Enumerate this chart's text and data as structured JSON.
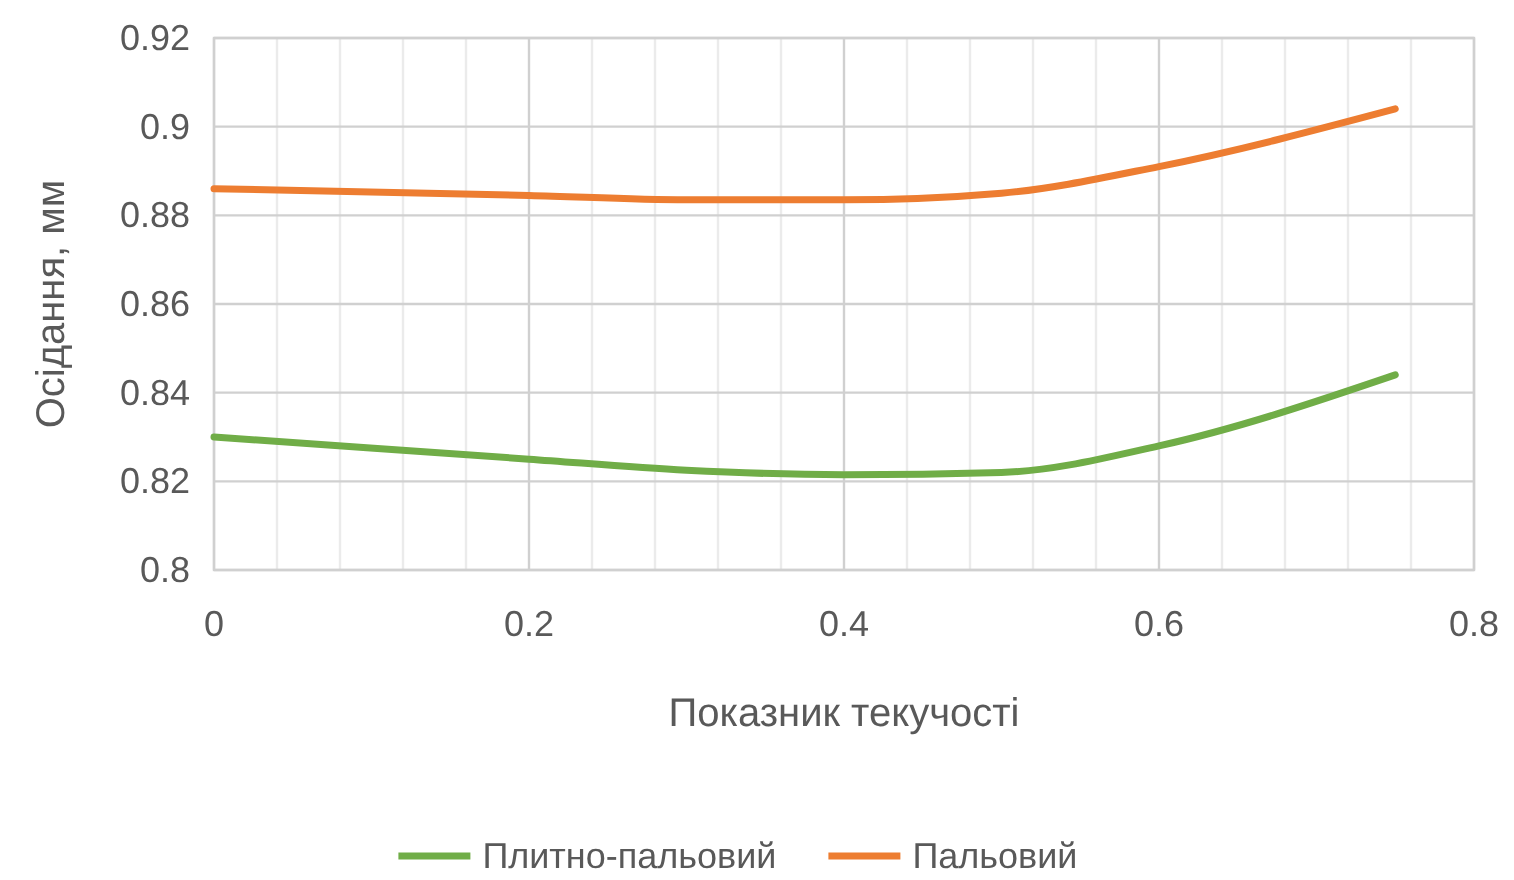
{
  "chart_data": {
    "type": "line",
    "xlabel": "Показник текучості",
    "ylabel": "Осідання, мм",
    "xlim": [
      0,
      0.8
    ],
    "ylim": [
      0.8,
      0.92
    ],
    "xticks": [
      0,
      {
        "value": 0.04,
        "label": null
      },
      {
        "value": 0.08,
        "label": null
      },
      {
        "value": 0.12,
        "label": null
      },
      {
        "value": 0.16,
        "label": null
      },
      0.2,
      {
        "value": 0.24,
        "label": null
      },
      {
        "value": 0.28,
        "label": null
      },
      {
        "value": 0.32,
        "label": null
      },
      {
        "value": 0.36,
        "label": null
      },
      0.4,
      {
        "value": 0.44,
        "label": null
      },
      {
        "value": 0.48,
        "label": null
      },
      {
        "value": 0.52,
        "label": null
      },
      {
        "value": 0.56,
        "label": null
      },
      0.6,
      {
        "value": 0.64,
        "label": null
      },
      {
        "value": 0.68,
        "label": null
      },
      {
        "value": 0.72,
        "label": null
      },
      {
        "value": 0.76,
        "label": null
      },
      0.8
    ],
    "yticks": [
      0.8,
      0.82,
      0.84,
      0.86,
      0.88,
      0.9,
      0.92
    ],
    "grid": true,
    "legend": "bottom",
    "marker": "none",
    "line_style": "solid",
    "x": [
      0,
      0.2,
      0.3,
      0.4,
      0.5,
      0.6,
      0.75
    ],
    "series": [
      {
        "name": "Плитно-пальовий",
        "color": "#70ad47",
        "values": [
          0.83,
          0.825,
          0.8225,
          0.8215,
          0.822,
          0.828,
          0.844
        ]
      },
      {
        "name": "Пальовий",
        "color": "#ed7d31",
        "values": [
          0.886,
          0.8845,
          0.8835,
          0.8835,
          0.885,
          0.891,
          0.904
        ]
      }
    ]
  }
}
